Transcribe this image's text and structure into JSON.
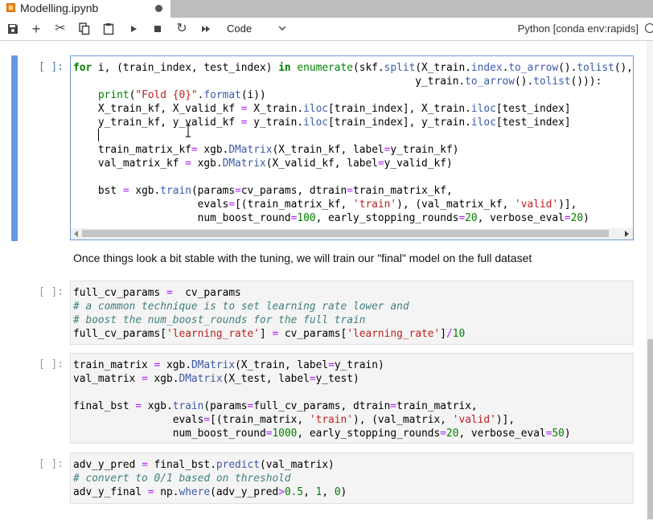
{
  "tab": {
    "title": "Modelling.ipynb",
    "icon": "notebook-icon",
    "unsaved": true
  },
  "toolbar": {
    "buttons": [
      "save-icon",
      "add-cell-icon",
      "cut-icon",
      "copy-icon",
      "paste-icon",
      "run-icon",
      "stop-icon",
      "restart-icon",
      "run-all-icon"
    ],
    "cell_type": "Code",
    "kernel": "Python [conda env:rapids]"
  },
  "colors": {
    "active_cell": "#6497e6",
    "keyword": "#008000",
    "operator": "#aa22ff",
    "string": "#ba2121",
    "comment": "#408080",
    "property": "#3a5aa8"
  },
  "cells": [
    {
      "type": "code",
      "prompt": "[ ]:",
      "lines": [
        "for i, (train_index, test_index) in enumerate(skf.split(X_train.index.to_arrow().tolist(),",
        "                                                       y_train.to_arrow().tolist())):",
        "    print(\"Fold {0}\".format(i))",
        "    X_train_kf, X_valid_kf = X_train.iloc[train_index], X_train.iloc[test_index]",
        "    y_train_kf, y_valid_kf = y_train.iloc[train_index], y_train.iloc[test_index]",
        "    ",
        "    train_matrix_kf= xgb.DMatrix(X_train_kf, label=y_train_kf)",
        "    val_matrix_kf = xgb.DMatrix(X_valid_kf, label=y_valid_kf)",
        "",
        "    bst = xgb.train(params=cv_params, dtrain=train_matrix_kf,",
        "                    evals=[(train_matrix_kf, 'train'), (val_matrix_kf, 'valid')],",
        "                    num_boost_round=100, early_stopping_rounds=20, verbose_eval=20)"
      ]
    },
    {
      "type": "markdown",
      "text": "Once things look a bit stable with the tuning, we will train our \"final\" model on the full dataset"
    },
    {
      "type": "code",
      "prompt": "[ ]:",
      "lines": [
        "full_cv_params =  cv_params",
        "# a common technique is to set learning rate lower and",
        "# boost the num_boost_rounds for the full train",
        "full_cv_params['learning_rate'] = cv_params['learning_rate']/10"
      ]
    },
    {
      "type": "code",
      "prompt": "[ ]:",
      "lines": [
        "train_matrix = xgb.DMatrix(X_train, label=y_train)",
        "val_matrix = xgb.DMatrix(X_test, label=y_test)",
        "",
        "final_bst = xgb.train(params=full_cv_params, dtrain=train_matrix,",
        "                evals=[(train_matrix, 'train'), (val_matrix, 'valid')],",
        "                num_boost_round=1000, early_stopping_rounds=20, verbose_eval=50)"
      ]
    },
    {
      "type": "code",
      "prompt": "[ ]:",
      "lines": [
        "adv_y_pred = final_bst.predict(val_matrix)",
        "# convert to 0/1 based on threshold",
        "adv_y_final = np.where(adv_y_pred>0.5, 1, 0)"
      ]
    }
  ]
}
